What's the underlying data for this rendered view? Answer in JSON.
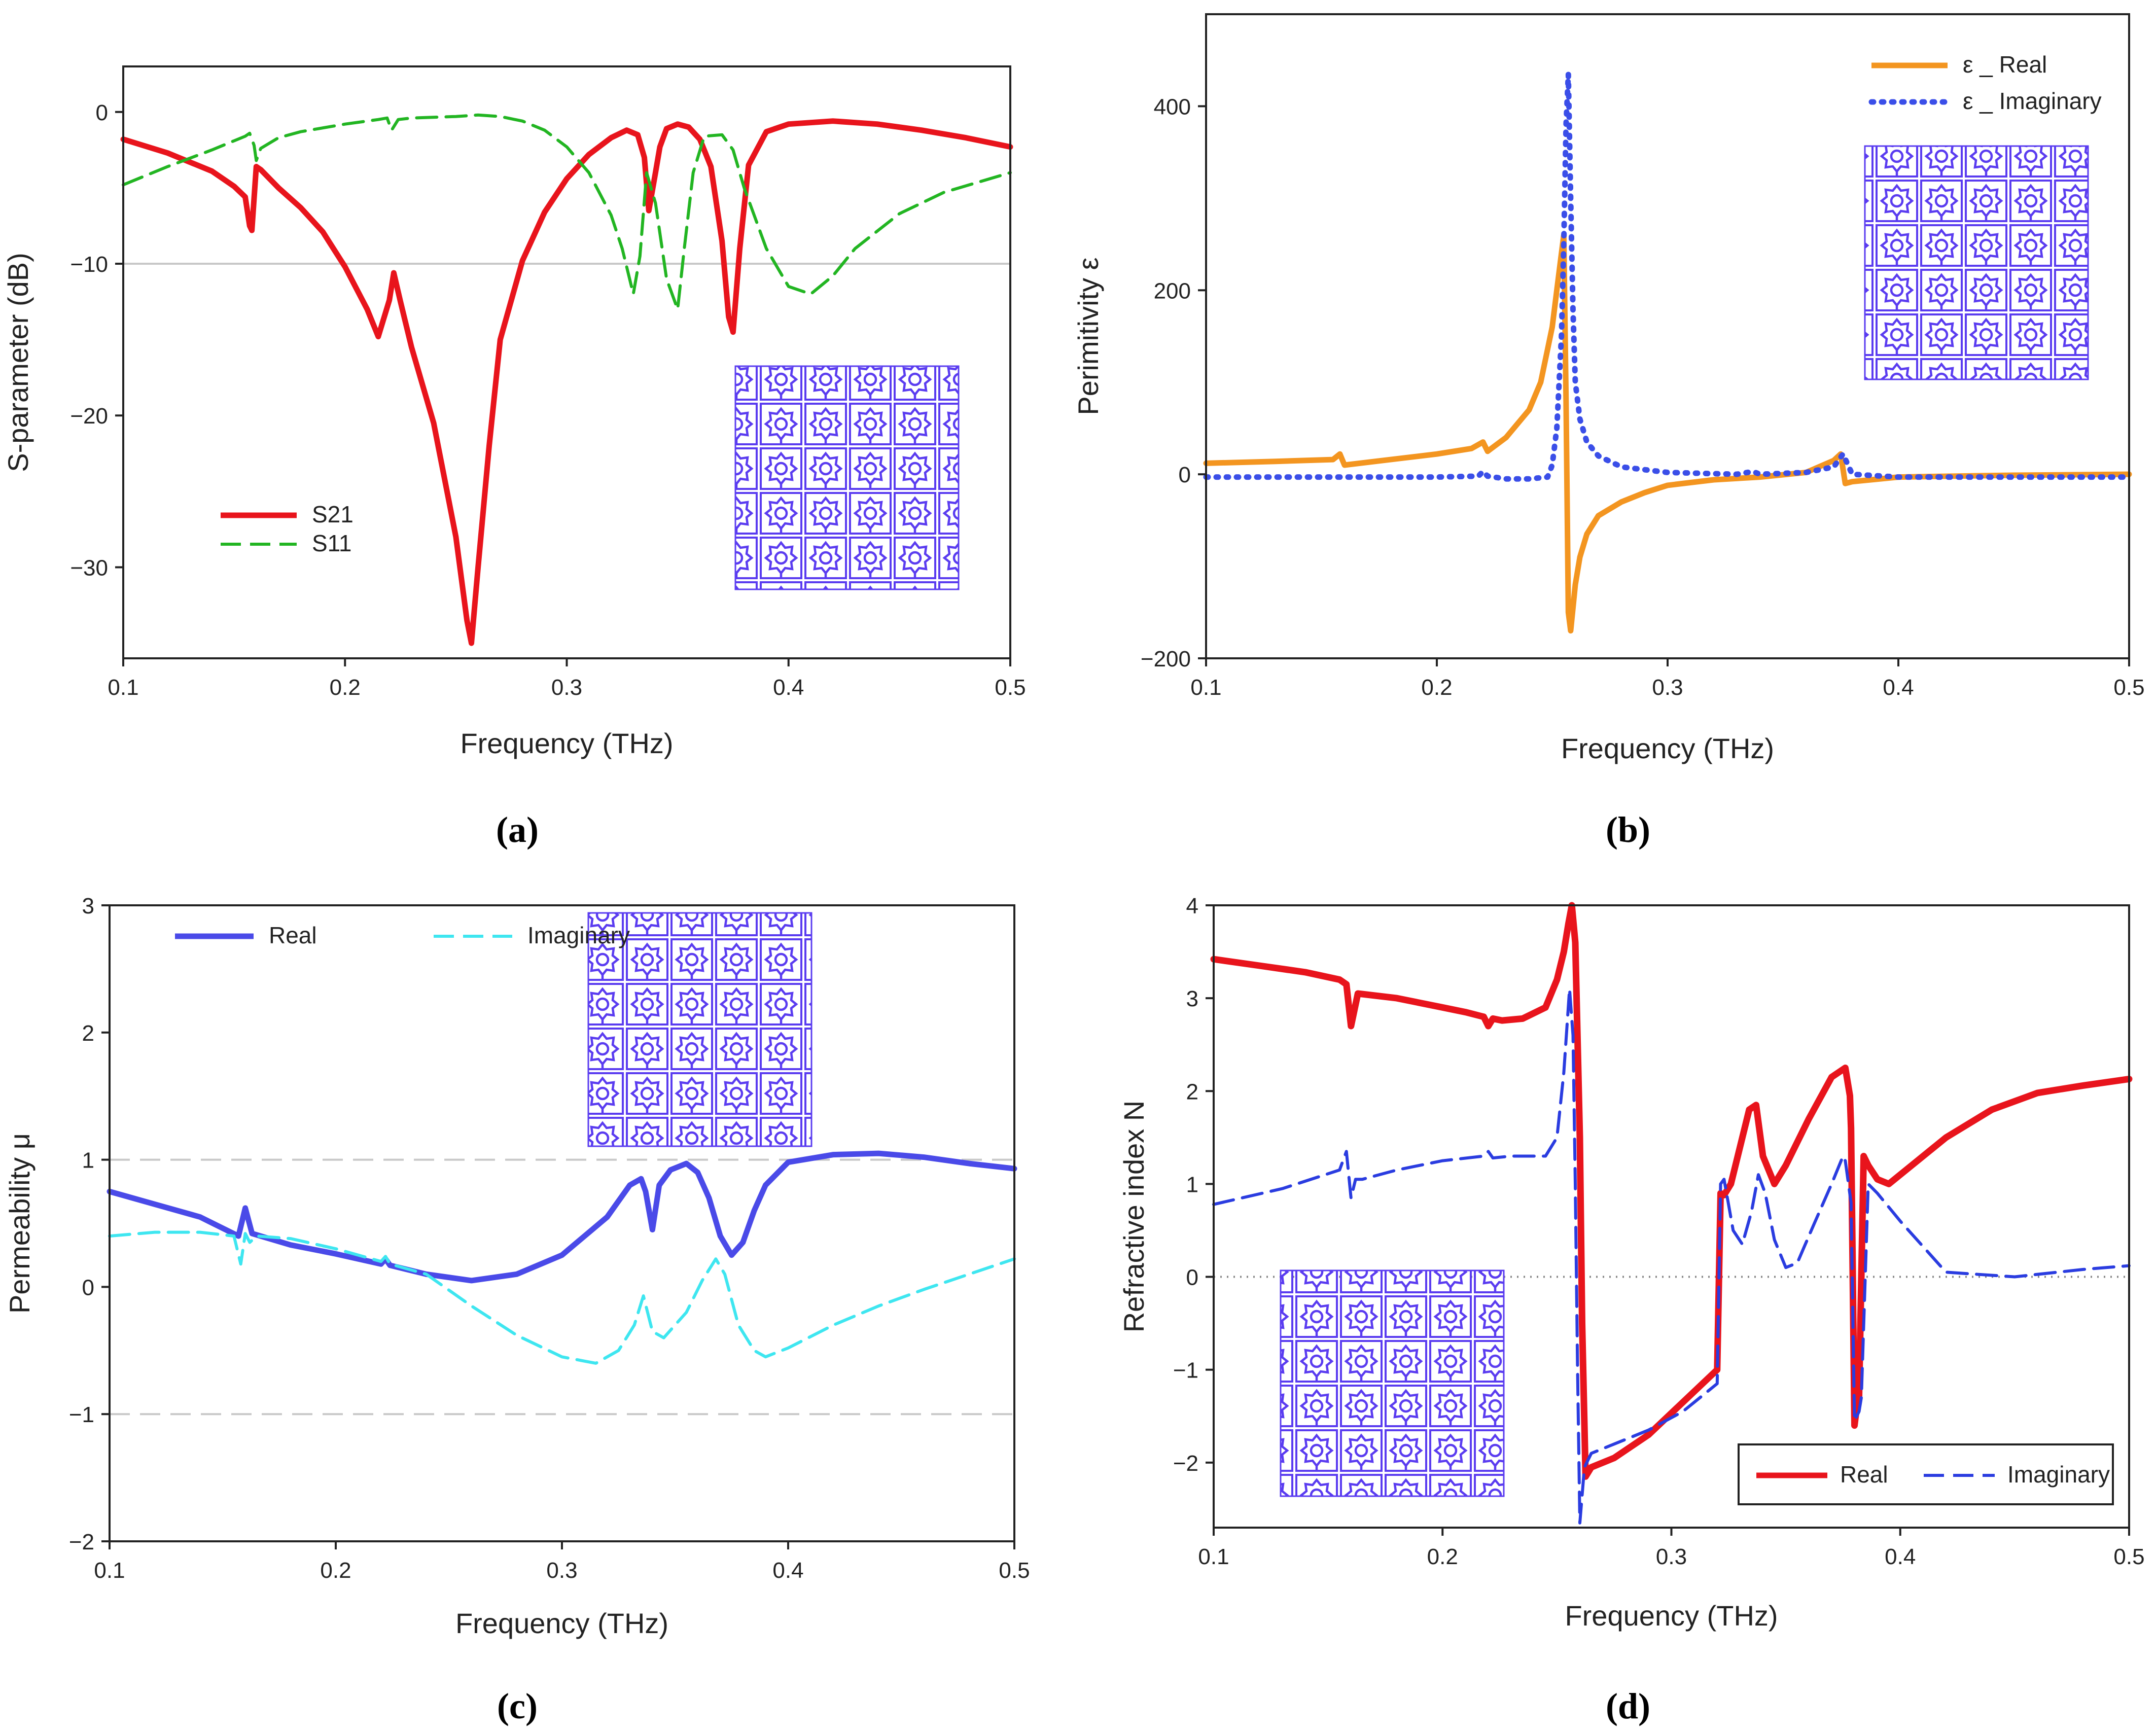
{
  "colors": {
    "red": "#e8141c",
    "green": "#22b522",
    "orange": "#f39520",
    "blue_dot": "#3a4ee8",
    "blue": "#4a4ae8",
    "cyan": "#3ee6f0",
    "blue_dash": "#2a3ce0",
    "unit_cell": "#5a3cf0"
  },
  "chart_data": [
    {
      "panel": "a",
      "type": "line",
      "caption": "(a)",
      "xlabel": "Frequency (THz)",
      "ylabel": "S-parameter (dB)",
      "xlim": [
        0.1,
        0.5
      ],
      "ylim": [
        -36,
        3
      ],
      "xticks": [
        0.1,
        0.2,
        0.3,
        0.4,
        0.5
      ],
      "xtick_labels": [
        "0.1",
        "0.2",
        "0.3",
        "0.4",
        "0.5"
      ],
      "yticks": [
        0,
        -10,
        -20,
        -30
      ],
      "ytick_labels": [
        "0",
        "−10",
        "−20",
        "−30"
      ],
      "reference_lines": [
        -10
      ],
      "legend_position": "lower-left",
      "inset": "unit-cell array (5x5)",
      "series": [
        {
          "name": "S21",
          "style": "solid",
          "color": "#e8141c",
          "x": [
            0.1,
            0.12,
            0.14,
            0.15,
            0.155,
            0.157,
            0.158,
            0.16,
            0.162,
            0.17,
            0.18,
            0.19,
            0.2,
            0.21,
            0.215,
            0.22,
            0.222,
            0.225,
            0.23,
            0.24,
            0.25,
            0.255,
            0.257,
            0.26,
            0.265,
            0.27,
            0.28,
            0.29,
            0.3,
            0.31,
            0.32,
            0.327,
            0.332,
            0.335,
            0.337,
            0.34,
            0.342,
            0.345,
            0.35,
            0.355,
            0.36,
            0.365,
            0.37,
            0.373,
            0.375,
            0.378,
            0.382,
            0.39,
            0.4,
            0.42,
            0.44,
            0.46,
            0.48,
            0.5
          ],
          "y": [
            -1.8,
            -2.7,
            -3.9,
            -4.9,
            -5.6,
            -7.5,
            -7.8,
            -3.6,
            -3.8,
            -5.0,
            -6.3,
            -7.9,
            -10.2,
            -13.0,
            -14.8,
            -12.4,
            -10.6,
            -12.5,
            -15.5,
            -20.5,
            -28.0,
            -33.5,
            -35.0,
            -30.0,
            -22.0,
            -15.0,
            -9.8,
            -6.6,
            -4.4,
            -2.8,
            -1.7,
            -1.2,
            -1.5,
            -3.0,
            -6.5,
            -4.0,
            -2.3,
            -1.1,
            -0.8,
            -1.0,
            -1.8,
            -3.6,
            -8.5,
            -13.5,
            -14.5,
            -9.0,
            -3.5,
            -1.3,
            -0.8,
            -0.6,
            -0.8,
            -1.2,
            -1.7,
            -2.3
          ]
        },
        {
          "name": "S11",
          "style": "dashed",
          "color": "#22b522",
          "x": [
            0.1,
            0.12,
            0.14,
            0.15,
            0.155,
            0.157,
            0.159,
            0.16,
            0.162,
            0.17,
            0.18,
            0.2,
            0.215,
            0.219,
            0.221,
            0.224,
            0.23,
            0.25,
            0.26,
            0.27,
            0.28,
            0.29,
            0.3,
            0.31,
            0.32,
            0.325,
            0.33,
            0.333,
            0.336,
            0.34,
            0.345,
            0.35,
            0.353,
            0.357,
            0.362,
            0.37,
            0.375,
            0.38,
            0.39,
            0.4,
            0.41,
            0.42,
            0.43,
            0.45,
            0.47,
            0.5
          ],
          "y": [
            -4.8,
            -3.6,
            -2.5,
            -1.9,
            -1.6,
            -1.4,
            -2.2,
            -3.2,
            -2.4,
            -1.7,
            -1.3,
            -0.8,
            -0.5,
            -0.4,
            -1.2,
            -0.5,
            -0.4,
            -0.3,
            -0.2,
            -0.3,
            -0.6,
            -1.2,
            -2.3,
            -4.0,
            -6.8,
            -9.0,
            -12.0,
            -9.5,
            -4.0,
            -6.0,
            -11.0,
            -13.0,
            -9.0,
            -4.0,
            -1.6,
            -1.5,
            -2.5,
            -5.0,
            -9.0,
            -11.5,
            -12.0,
            -10.8,
            -9.0,
            -6.7,
            -5.3,
            -4.0
          ]
        }
      ]
    },
    {
      "panel": "b",
      "type": "line",
      "caption": "(b)",
      "xlabel": "Frequency (THz)",
      "ylabel": "Perimitivity ε",
      "xlim": [
        0.1,
        0.5
      ],
      "ylim": [
        -200,
        500
      ],
      "xticks": [
        0.1,
        0.2,
        0.3,
        0.4,
        0.5
      ],
      "xtick_labels": [
        "0.1",
        "0.2",
        "0.3",
        "0.4",
        "0.5"
      ],
      "yticks": [
        400,
        200,
        0,
        -200
      ],
      "ytick_labels": [
        "400",
        "200",
        "0",
        "−200"
      ],
      "legend_position": "top-right",
      "inset": "unit-cell array (5x5)",
      "series": [
        {
          "name": "ε _ Real",
          "style": "solid",
          "color": "#f39520",
          "x": [
            0.1,
            0.13,
            0.155,
            0.158,
            0.16,
            0.18,
            0.2,
            0.215,
            0.22,
            0.222,
            0.23,
            0.24,
            0.245,
            0.25,
            0.253,
            0.255,
            0.256,
            0.257,
            0.258,
            0.26,
            0.262,
            0.265,
            0.27,
            0.28,
            0.29,
            0.3,
            0.32,
            0.34,
            0.36,
            0.372,
            0.375,
            0.377,
            0.38,
            0.4,
            0.45,
            0.5
          ],
          "y": [
            12,
            14,
            16,
            22,
            10,
            16,
            22,
            28,
            35,
            25,
            40,
            70,
            100,
            160,
            220,
            260,
            80,
            -150,
            -170,
            -120,
            -90,
            -65,
            -45,
            -30,
            -20,
            -12,
            -6,
            -3,
            2,
            15,
            22,
            -10,
            -8,
            -3,
            -1,
            0
          ]
        },
        {
          "name": "ε _ Imaginary",
          "style": "dotted",
          "color": "#3a4ee8",
          "x": [
            0.1,
            0.15,
            0.2,
            0.218,
            0.22,
            0.222,
            0.23,
            0.24,
            0.248,
            0.25,
            0.252,
            0.254,
            0.255,
            0.256,
            0.257,
            0.258,
            0.259,
            0.26,
            0.262,
            0.265,
            0.27,
            0.28,
            0.3,
            0.33,
            0.337,
            0.34,
            0.36,
            0.372,
            0.376,
            0.38,
            0.4,
            0.45,
            0.5
          ],
          "y": [
            -3,
            -3,
            -3,
            -2,
            3,
            -2,
            -5,
            -5,
            -3,
            10,
            50,
            150,
            250,
            380,
            435,
            300,
            180,
            100,
            60,
            35,
            20,
            8,
            2,
            0,
            3,
            0,
            2,
            8,
            22,
            0,
            -3,
            -3,
            -3
          ]
        }
      ]
    },
    {
      "panel": "c",
      "type": "line",
      "caption": "(c)",
      "xlabel": "Frequency (THz)",
      "ylabel": "Permeability μ",
      "xlim": [
        0.1,
        0.5
      ],
      "ylim": [
        -2,
        3
      ],
      "xticks": [
        0.1,
        0.2,
        0.3,
        0.4,
        0.5
      ],
      "xtick_labels": [
        "0.1",
        "0.2",
        "0.3",
        "0.4",
        "0.5"
      ],
      "yticks": [
        3,
        2,
        1,
        0,
        -1,
        -2
      ],
      "ytick_labels": [
        "3",
        "2",
        "1",
        "0",
        "−1",
        "−2"
      ],
      "reference_lines": [
        1,
        -1
      ],
      "legend_position": "top-left",
      "inset": "unit-cell array (5x5)",
      "series": [
        {
          "name": "Real",
          "style": "solid",
          "color": "#4a4ae8",
          "x": [
            0.1,
            0.12,
            0.14,
            0.157,
            0.16,
            0.163,
            0.18,
            0.2,
            0.22,
            0.222,
            0.224,
            0.24,
            0.26,
            0.28,
            0.3,
            0.32,
            0.33,
            0.335,
            0.337,
            0.34,
            0.343,
            0.348,
            0.355,
            0.36,
            0.365,
            0.37,
            0.375,
            0.38,
            0.385,
            0.39,
            0.4,
            0.42,
            0.44,
            0.46,
            0.48,
            0.5
          ],
          "y": [
            0.75,
            0.65,
            0.55,
            0.4,
            0.62,
            0.42,
            0.33,
            0.26,
            0.18,
            0.22,
            0.17,
            0.1,
            0.05,
            0.1,
            0.25,
            0.55,
            0.8,
            0.85,
            0.75,
            0.45,
            0.8,
            0.92,
            0.97,
            0.9,
            0.7,
            0.4,
            0.25,
            0.35,
            0.6,
            0.8,
            0.98,
            1.04,
            1.05,
            1.02,
            0.97,
            0.93
          ]
        },
        {
          "name": "Imaginary",
          "style": "dashed",
          "color": "#3ee6f0",
          "x": [
            0.1,
            0.12,
            0.14,
            0.155,
            0.158,
            0.16,
            0.162,
            0.165,
            0.18,
            0.2,
            0.22,
            0.222,
            0.224,
            0.24,
            0.26,
            0.28,
            0.3,
            0.315,
            0.325,
            0.332,
            0.336,
            0.34,
            0.345,
            0.355,
            0.362,
            0.368,
            0.372,
            0.378,
            0.385,
            0.39,
            0.4,
            0.42,
            0.44,
            0.46,
            0.48,
            0.5
          ],
          "y": [
            0.4,
            0.43,
            0.43,
            0.4,
            0.18,
            0.42,
            0.35,
            0.4,
            0.38,
            0.3,
            0.2,
            0.24,
            0.18,
            0.1,
            -0.15,
            -0.38,
            -0.55,
            -0.6,
            -0.5,
            -0.3,
            -0.07,
            -0.35,
            -0.4,
            -0.2,
            0.05,
            0.22,
            0.1,
            -0.3,
            -0.5,
            -0.55,
            -0.48,
            -0.3,
            -0.15,
            -0.02,
            0.1,
            0.22
          ]
        }
      ]
    },
    {
      "panel": "d",
      "type": "line",
      "caption": "(d)",
      "xlabel": "Frequency (THz)",
      "ylabel": "Refractive index N",
      "xlim": [
        0.1,
        0.5
      ],
      "ylim": [
        -2.7,
        4
      ],
      "xticks": [
        0.1,
        0.2,
        0.3,
        0.4,
        0.5
      ],
      "xtick_labels": [
        "0.1",
        "0.2",
        "0.3",
        "0.4",
        "0.5"
      ],
      "yticks": [
        4,
        3,
        2,
        1,
        0,
        -1,
        -2
      ],
      "ytick_labels": [
        "4",
        "3",
        "2",
        "1",
        "0",
        "−1",
        "−2"
      ],
      "reference_lines": [
        0
      ],
      "legend_position": "bottom-right",
      "inset": "unit-cell array (5x5)",
      "series": [
        {
          "name": "Real",
          "style": "solid",
          "color": "#e8141c",
          "x": [
            0.1,
            0.12,
            0.14,
            0.155,
            0.158,
            0.16,
            0.163,
            0.18,
            0.2,
            0.21,
            0.218,
            0.22,
            0.222,
            0.226,
            0.235,
            0.245,
            0.25,
            0.253,
            0.255,
            0.2565,
            0.258,
            0.26,
            0.261,
            0.2625,
            0.265,
            0.275,
            0.29,
            0.305,
            0.32,
            0.3215,
            0.323,
            0.326,
            0.33,
            0.334,
            0.337,
            0.34,
            0.345,
            0.35,
            0.36,
            0.37,
            0.376,
            0.378,
            0.3785,
            0.38,
            0.381,
            0.382,
            0.383,
            0.384,
            0.386,
            0.39,
            0.395,
            0.4,
            0.42,
            0.44,
            0.46,
            0.48,
            0.5
          ],
          "y": [
            3.42,
            3.35,
            3.28,
            3.2,
            3.15,
            2.7,
            3.05,
            3.0,
            2.9,
            2.85,
            2.8,
            2.7,
            2.78,
            2.76,
            2.78,
            2.9,
            3.2,
            3.5,
            3.8,
            4.0,
            3.6,
            1.5,
            -0.5,
            -2.15,
            -2.05,
            -1.95,
            -1.7,
            -1.35,
            -1.0,
            0.9,
            0.88,
            1.0,
            1.4,
            1.8,
            1.85,
            1.3,
            1.0,
            1.2,
            1.7,
            2.15,
            2.25,
            1.95,
            1.6,
            -1.6,
            -1.4,
            -1.3,
            0.0,
            1.3,
            1.2,
            1.05,
            1.0,
            1.1,
            1.5,
            1.8,
            1.98,
            2.06,
            2.13
          ]
        },
        {
          "name": "Imaginary",
          "style": "dashed",
          "color": "#2a3ce0",
          "x": [
            0.1,
            0.13,
            0.155,
            0.158,
            0.16,
            0.162,
            0.165,
            0.18,
            0.2,
            0.218,
            0.22,
            0.222,
            0.23,
            0.245,
            0.25,
            0.253,
            0.2555,
            0.257,
            0.258,
            0.259,
            0.26,
            0.262,
            0.265,
            0.275,
            0.29,
            0.305,
            0.32,
            0.3215,
            0.323,
            0.327,
            0.331,
            0.335,
            0.338,
            0.341,
            0.345,
            0.35,
            0.355,
            0.362,
            0.37,
            0.375,
            0.376,
            0.3785,
            0.38,
            0.382,
            0.383,
            0.386,
            0.39,
            0.4,
            0.42,
            0.45,
            0.48,
            0.5
          ],
          "y": [
            0.78,
            0.95,
            1.15,
            1.35,
            0.85,
            1.05,
            1.05,
            1.15,
            1.25,
            1.3,
            1.35,
            1.28,
            1.3,
            1.3,
            1.5,
            2.2,
            3.1,
            2.6,
            1.0,
            -1.0,
            -2.65,
            -2.05,
            -1.9,
            -1.8,
            -1.65,
            -1.45,
            -1.15,
            1.0,
            1.05,
            0.5,
            0.35,
            0.7,
            1.1,
            0.9,
            0.4,
            0.1,
            0.15,
            0.55,
            1.0,
            1.3,
            1.25,
            0.8,
            -1.55,
            -1.45,
            -1.3,
            1.0,
            0.9,
            0.6,
            0.05,
            0.0,
            0.08,
            0.12
          ]
        }
      ]
    }
  ]
}
